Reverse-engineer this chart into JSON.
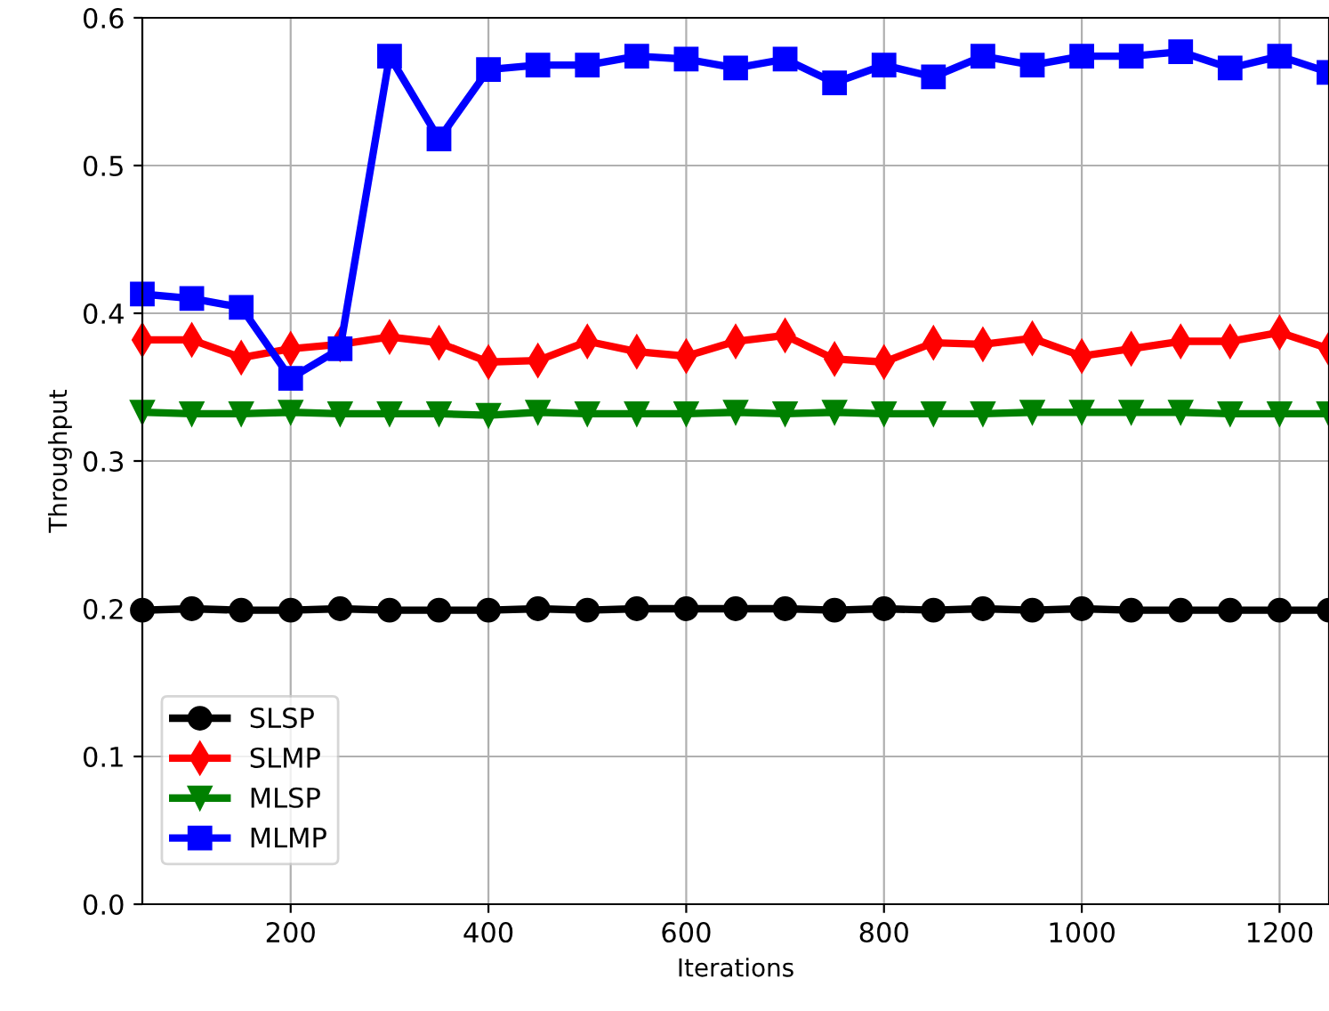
{
  "chart_data": {
    "type": "line",
    "xlabel": "Iterations",
    "ylabel": "Throughput",
    "x": [
      50,
      100,
      150,
      200,
      250,
      300,
      350,
      400,
      450,
      500,
      550,
      600,
      650,
      700,
      750,
      800,
      850,
      900,
      950,
      1000,
      1050,
      1100,
      1150,
      1200,
      1250
    ],
    "xlim": [
      50,
      1250
    ],
    "xticks": [
      200,
      400,
      600,
      800,
      1000,
      1200
    ],
    "ylim": [
      0,
      0.6
    ],
    "yticks": [
      {
        "value": 0,
        "label": "0.0"
      },
      0.1,
      0.2,
      0.3,
      0.4,
      0.5,
      0.6
    ],
    "grid": true,
    "legend": "bottom left",
    "series": [
      {
        "name": "SLSP",
        "color": "#000000",
        "marker": "circle",
        "values": [
          0.199,
          0.2,
          0.199,
          0.199,
          0.2,
          0.199,
          0.199,
          0.199,
          0.2,
          0.199,
          0.2,
          0.2,
          0.2,
          0.2,
          0.199,
          0.2,
          0.199,
          0.2,
          0.199,
          0.2,
          0.199,
          0.199,
          0.199,
          0.199,
          0.199
        ]
      },
      {
        "name": "SLMP",
        "color": "#ff0000",
        "marker": "diamond",
        "values": [
          0.382,
          0.382,
          0.37,
          0.376,
          0.379,
          0.384,
          0.38,
          0.367,
          0.368,
          0.381,
          0.374,
          0.371,
          0.381,
          0.385,
          0.369,
          0.367,
          0.38,
          0.379,
          0.383,
          0.371,
          0.376,
          0.381,
          0.381,
          0.387,
          0.376
        ]
      },
      {
        "name": "MLSP",
        "color": "#008000",
        "marker": "triangle",
        "values": [
          0.333,
          0.332,
          0.332,
          0.333,
          0.332,
          0.332,
          0.332,
          0.331,
          0.333,
          0.332,
          0.332,
          0.332,
          0.333,
          0.332,
          0.333,
          0.332,
          0.332,
          0.332,
          0.333,
          0.333,
          0.333,
          0.333,
          0.332,
          0.332,
          0.332
        ]
      },
      {
        "name": "MLMP",
        "color": "#0000ff",
        "marker": "square",
        "values": [
          0.413,
          0.41,
          0.404,
          0.356,
          0.376,
          0.574,
          0.518,
          0.565,
          0.568,
          0.568,
          0.574,
          0.572,
          0.566,
          0.572,
          0.556,
          0.568,
          0.56,
          0.574,
          0.568,
          0.574,
          0.574,
          0.577,
          0.566,
          0.574,
          0.563
        ]
      }
    ]
  }
}
